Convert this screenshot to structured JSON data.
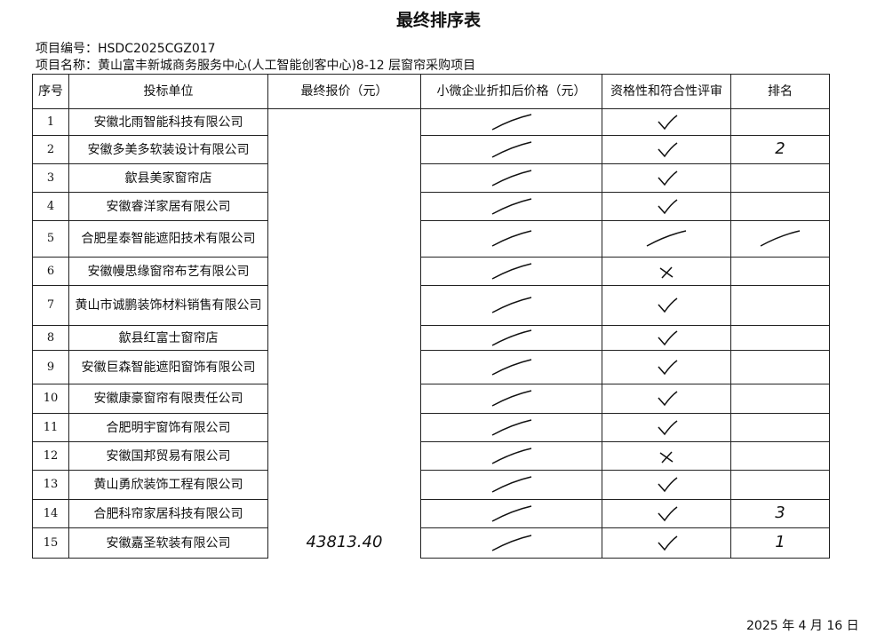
{
  "title": "最终排序表",
  "project_no": "项目编号：HSDC2025CGZ017",
  "project_name": "项目名称：黄山富丰新城商务服务中心(人工智能创客中心)8-12 层窗帘采购项目",
  "columns": [
    "序号",
    "投标单位",
    "最终报价（元）",
    "小微企业折扣后价格（元）",
    "资格性和符合性评审",
    "排名"
  ],
  "rows": [
    {
      "no": "1",
      "bidder": "安徽北雨智能科技有限公司",
      "price": "",
      "discount": "slash",
      "review": "check",
      "rank": ""
    },
    {
      "no": "2",
      "bidder": "安徽多美多软装设计有限公司",
      "price": "",
      "discount": "slash",
      "review": "check",
      "rank": "2"
    },
    {
      "no": "3",
      "bidder": "歙县美家窗帘店",
      "price": "",
      "discount": "slash",
      "review": "check",
      "rank": ""
    },
    {
      "no": "4",
      "bidder": "安徽睿洋家居有限公司",
      "price": "",
      "discount": "slash",
      "review": "check",
      "rank": ""
    },
    {
      "no": "5",
      "bidder": "合肥星泰智能遮阳技术有限公司",
      "price": "",
      "discount": "slash",
      "review": "slash",
      "rank": "slash"
    },
    {
      "no": "6",
      "bidder": "安徽幔思缘窗帘布艺有限公司",
      "price": "",
      "discount": "slash",
      "review": "cross",
      "rank": ""
    },
    {
      "no": "7",
      "bidder": "黄山市诚鹏装饰材料销售有限公司",
      "price": "",
      "discount": "slash",
      "review": "check",
      "rank": ""
    },
    {
      "no": "8",
      "bidder": "歙县红富士窗帘店",
      "price": "",
      "discount": "slash",
      "review": "check",
      "rank": ""
    },
    {
      "no": "9",
      "bidder": "安徽巨森智能遮阳窗饰有限公司",
      "price": "",
      "discount": "slash",
      "review": "check",
      "rank": ""
    },
    {
      "no": "10",
      "bidder": "安徽康豪窗帘有限责任公司",
      "price": "",
      "discount": "slash",
      "review": "check",
      "rank": ""
    },
    {
      "no": "11",
      "bidder": "合肥明宇窗饰有限公司",
      "price": "",
      "discount": "slash",
      "review": "check",
      "rank": ""
    },
    {
      "no": "12",
      "bidder": "安徽国邦贸易有限公司",
      "price": "",
      "discount": "slash",
      "review": "cross",
      "rank": ""
    },
    {
      "no": "13",
      "bidder": "黄山勇欣装饰工程有限公司",
      "price": "",
      "discount": "slash",
      "review": "check",
      "rank": ""
    },
    {
      "no": "14",
      "bidder": "合肥科帘家居科技有限公司",
      "price": "",
      "discount": "slash",
      "review": "check",
      "rank": "3"
    },
    {
      "no": "15",
      "bidder": "安徽嘉圣软装有限公司",
      "price": "43813.40",
      "discount": "slash",
      "review": "check",
      "rank": "1"
    }
  ],
  "date": "2025 年 4 月 16 日"
}
